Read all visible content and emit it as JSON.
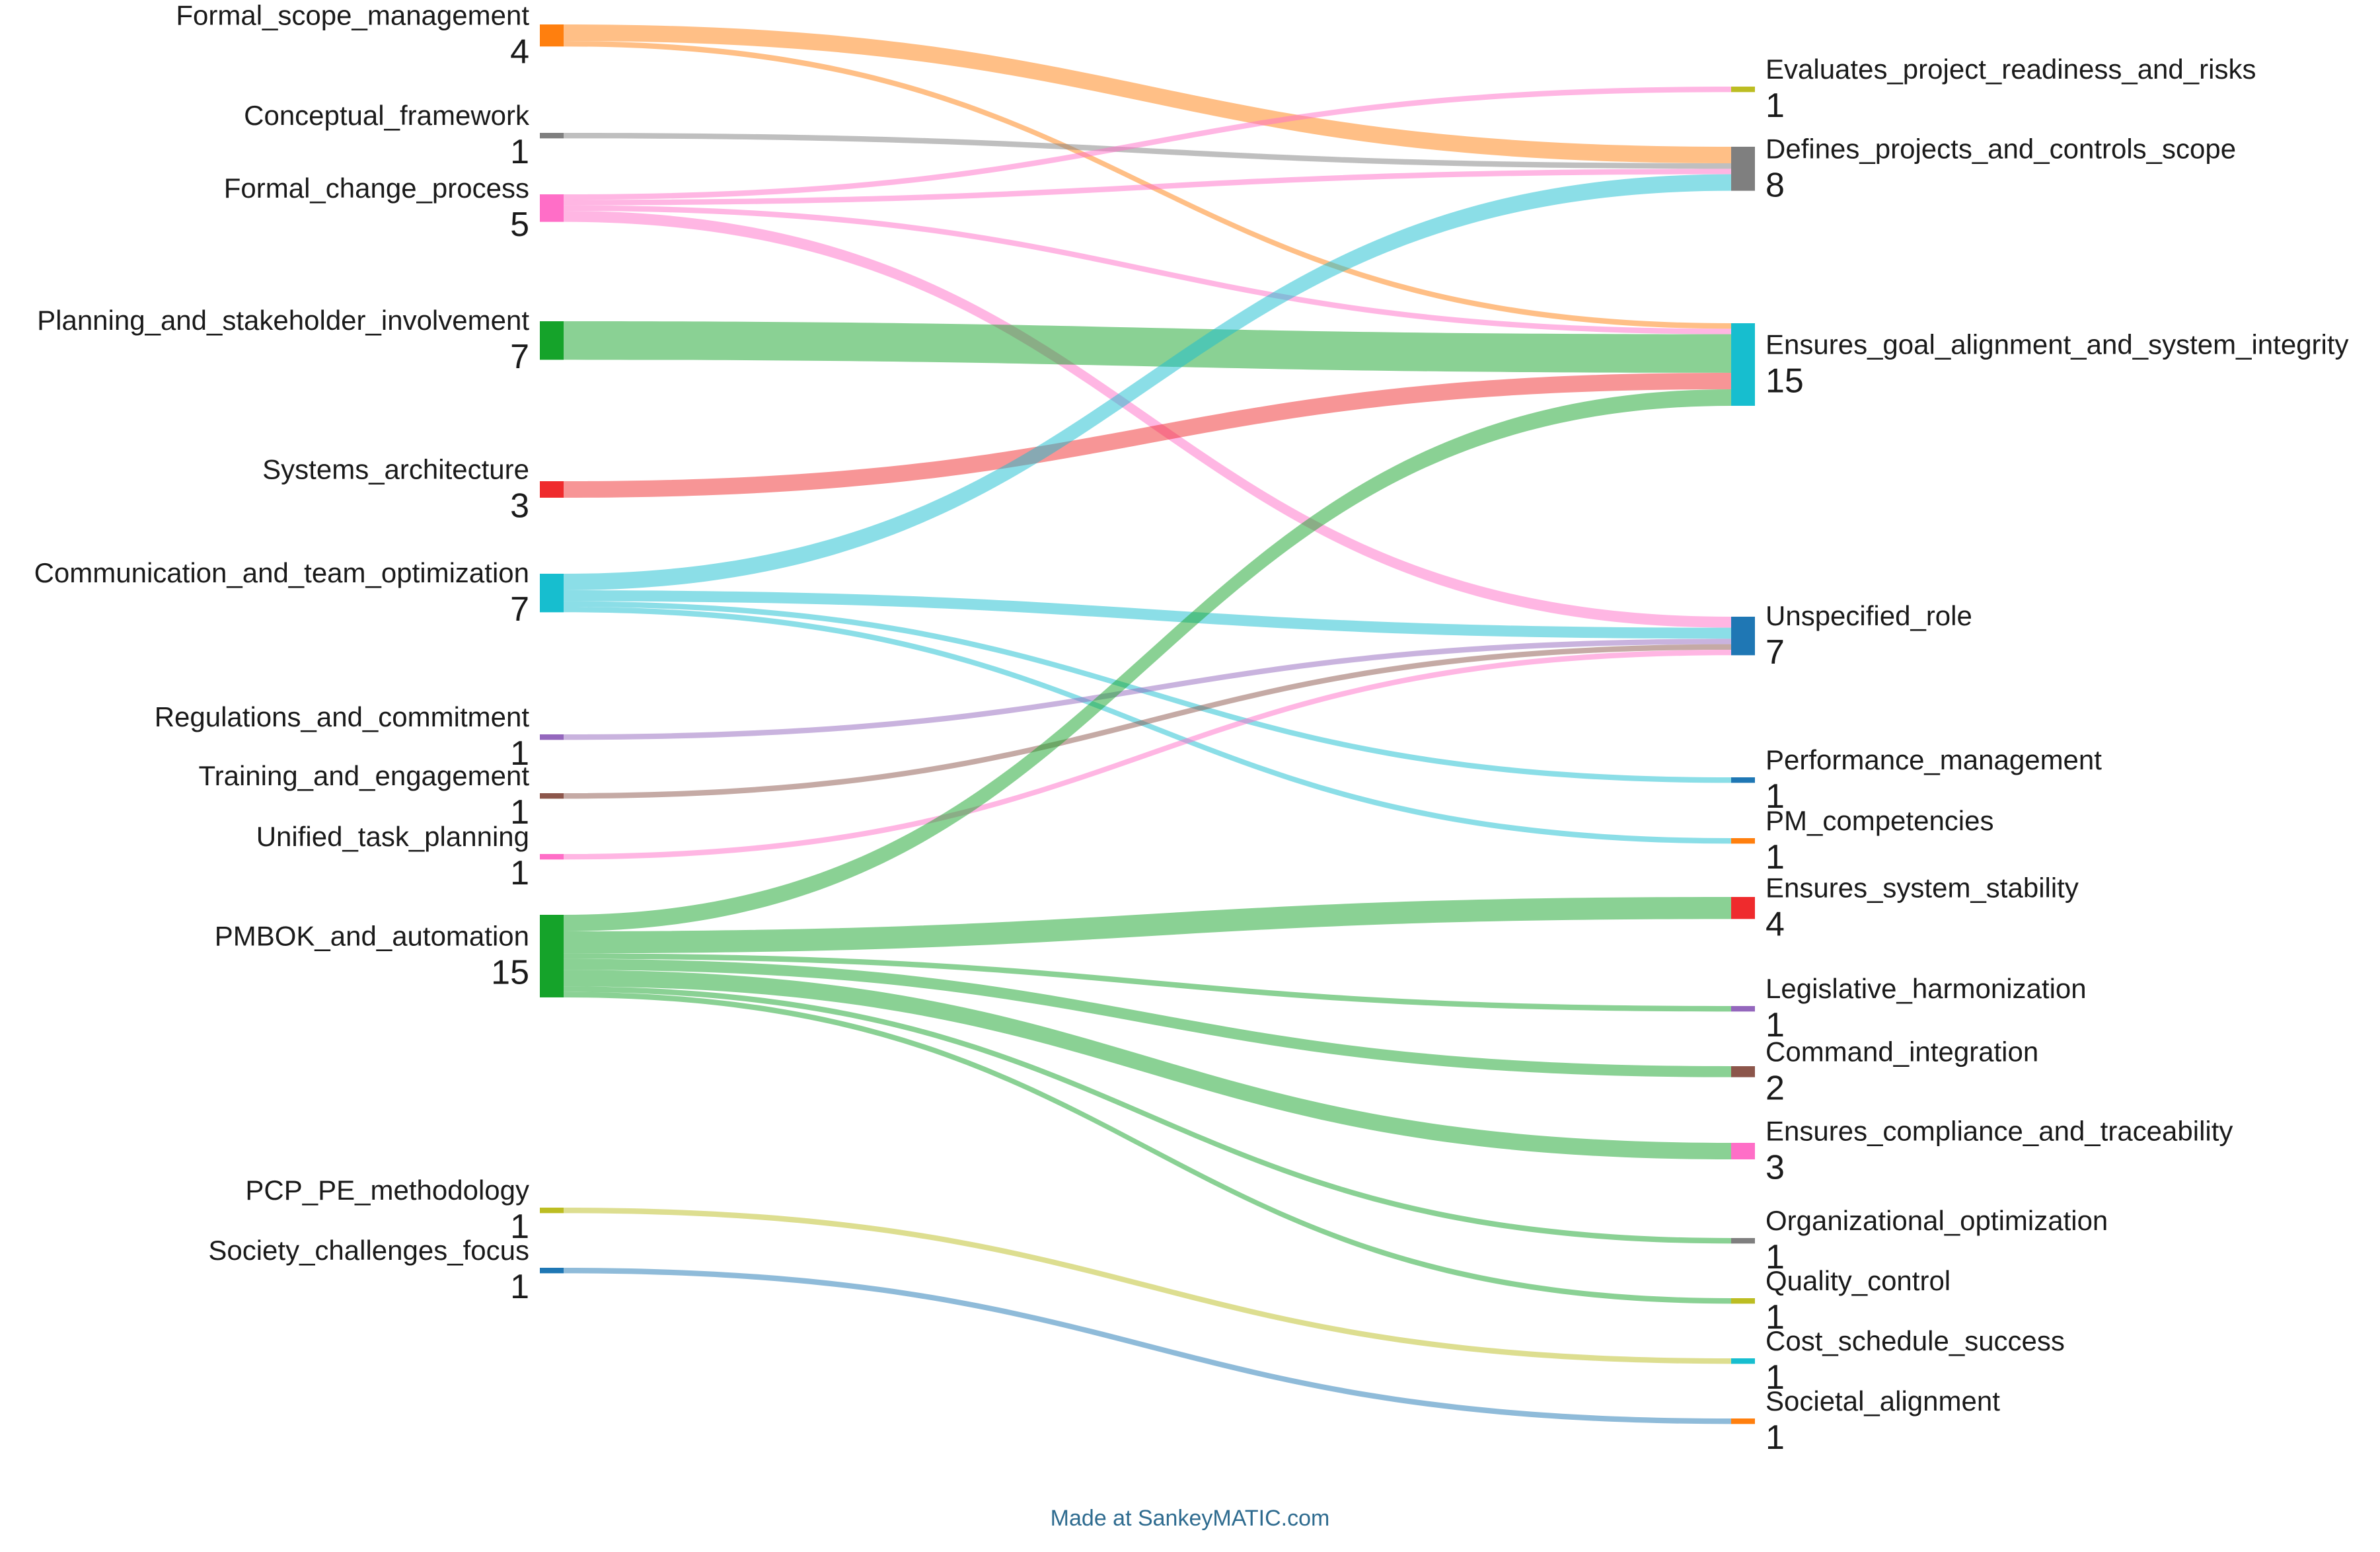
{
  "chart_data": {
    "type": "sankey",
    "sources": [
      {
        "id": "Formal_scope_management",
        "label": "Formal_scope_management",
        "value": 4,
        "color": "#ff7f0e"
      },
      {
        "id": "Conceptual_framework",
        "label": "Conceptual_framework",
        "value": 1,
        "color": "#7f7f7f"
      },
      {
        "id": "Formal_change_process",
        "label": "Formal_change_process",
        "value": 5,
        "color": "#ff6ec7"
      },
      {
        "id": "Planning_and_stakeholder_involvement",
        "label": "Planning_and_stakeholder_involvement",
        "value": 7,
        "color": "#15a32a"
      },
      {
        "id": "Systems_architecture",
        "label": "Systems_architecture",
        "value": 3,
        "color": "#ef2b2d"
      },
      {
        "id": "Communication_and_team_optimization",
        "label": "Communication_and_team_optimization",
        "value": 7,
        "color": "#17becf"
      },
      {
        "id": "Regulations_and_commitment",
        "label": "Regulations_and_commitment",
        "value": 1,
        "color": "#9467bd"
      },
      {
        "id": "Training_and_engagement",
        "label": "Training_and_engagement",
        "value": 1,
        "color": "#8c564b"
      },
      {
        "id": "Unified_task_planning",
        "label": "Unified_task_planning",
        "value": 1,
        "color": "#ff6ec7"
      },
      {
        "id": "PMBOK_and_automation",
        "label": "PMBOK_and_automation",
        "value": 15,
        "color": "#15a32a"
      },
      {
        "id": "PCP_PE_methodology",
        "label": "PCP_PE_methodology",
        "value": 1,
        "color": "#bcbd22"
      },
      {
        "id": "Society_challenges_focus",
        "label": "Society_challenges_focus",
        "value": 1,
        "color": "#1f77b4"
      }
    ],
    "targets": [
      {
        "id": "Evaluates_project_readiness_and_risks",
        "label": "Evaluates_project_readiness_and_risks",
        "value": 1,
        "color": "#bcbd22"
      },
      {
        "id": "Defines_projects_and_controls_scope",
        "label": "Defines_projects_and_controls_scope",
        "value": 8,
        "color": "#7f7f7f"
      },
      {
        "id": "Ensures_goal_alignment_and_system_integrity",
        "label": "Ensures_goal_alignment_and_system_integrity",
        "value": 15,
        "color": "#17becf"
      },
      {
        "id": "Unspecified_role",
        "label": "Unspecified_role",
        "value": 7,
        "color": "#1f77b4"
      },
      {
        "id": "Performance_management",
        "label": "Performance_management",
        "value": 1,
        "color": "#1f77b4"
      },
      {
        "id": "PM_competencies",
        "label": "PM_competencies",
        "value": 1,
        "color": "#ff7f0e"
      },
      {
        "id": "Ensures_system_stability",
        "label": "Ensures_system_stability",
        "value": 4,
        "color": "#ef2b2d"
      },
      {
        "id": "Legislative_harmonization",
        "label": "Legislative_harmonization",
        "value": 1,
        "color": "#9467bd"
      },
      {
        "id": "Command_integration",
        "label": "Command_integration",
        "value": 2,
        "color": "#8c564b"
      },
      {
        "id": "Ensures_compliance_and_traceability",
        "label": "Ensures_compliance_and_traceability",
        "value": 3,
        "color": "#ff6ec7"
      },
      {
        "id": "Organizational_optimization",
        "label": "Organizational_optimization",
        "value": 1,
        "color": "#7f7f7f"
      },
      {
        "id": "Quality_control",
        "label": "Quality_control",
        "value": 1,
        "color": "#bcbd22"
      },
      {
        "id": "Cost_schedule_success",
        "label": "Cost_schedule_success",
        "value": 1,
        "color": "#17becf"
      },
      {
        "id": "Societal_alignment",
        "label": "Societal_alignment",
        "value": 1,
        "color": "#ff7f0e"
      }
    ],
    "links": [
      {
        "source": "Formal_scope_management",
        "target": "Defines_projects_and_controls_scope",
        "value": 3
      },
      {
        "source": "Formal_scope_management",
        "target": "Ensures_goal_alignment_and_system_integrity",
        "value": 1
      },
      {
        "source": "Conceptual_framework",
        "target": "Defines_projects_and_controls_scope",
        "value": 1
      },
      {
        "source": "Formal_change_process",
        "target": "Evaluates_project_readiness_and_risks",
        "value": 1
      },
      {
        "source": "Formal_change_process",
        "target": "Defines_projects_and_controls_scope",
        "value": 1
      },
      {
        "source": "Formal_change_process",
        "target": "Ensures_goal_alignment_and_system_integrity",
        "value": 1
      },
      {
        "source": "Formal_change_process",
        "target": "Unspecified_role",
        "value": 2
      },
      {
        "source": "Planning_and_stakeholder_involvement",
        "target": "Ensures_goal_alignment_and_system_integrity",
        "value": 7
      },
      {
        "source": "Systems_architecture",
        "target": "Ensures_goal_alignment_and_system_integrity",
        "value": 3
      },
      {
        "source": "Communication_and_team_optimization",
        "target": "Defines_projects_and_controls_scope",
        "value": 3
      },
      {
        "source": "Communication_and_team_optimization",
        "target": "Unspecified_role",
        "value": 2
      },
      {
        "source": "Communication_and_team_optimization",
        "target": "Performance_management",
        "value": 1
      },
      {
        "source": "Communication_and_team_optimization",
        "target": "PM_competencies",
        "value": 1
      },
      {
        "source": "Regulations_and_commitment",
        "target": "Unspecified_role",
        "value": 1
      },
      {
        "source": "Training_and_engagement",
        "target": "Unspecified_role",
        "value": 1
      },
      {
        "source": "Unified_task_planning",
        "target": "Unspecified_role",
        "value": 1
      },
      {
        "source": "PMBOK_and_automation",
        "target": "Ensures_goal_alignment_and_system_integrity",
        "value": 3
      },
      {
        "source": "PMBOK_and_automation",
        "target": "Ensures_system_stability",
        "value": 4
      },
      {
        "source": "PMBOK_and_automation",
        "target": "Legislative_harmonization",
        "value": 1
      },
      {
        "source": "PMBOK_and_automation",
        "target": "Command_integration",
        "value": 2
      },
      {
        "source": "PMBOK_and_automation",
        "target": "Ensures_compliance_and_traceability",
        "value": 3
      },
      {
        "source": "PMBOK_and_automation",
        "target": "Organizational_optimization",
        "value": 1
      },
      {
        "source": "PMBOK_and_automation",
        "target": "Quality_control",
        "value": 1
      },
      {
        "source": "PCP_PE_methodology",
        "target": "Cost_schedule_success",
        "value": 1
      },
      {
        "source": "Society_challenges_focus",
        "target": "Societal_alignment",
        "value": 1
      }
    ],
    "credit": "Made at SankeyMATIC.com"
  }
}
